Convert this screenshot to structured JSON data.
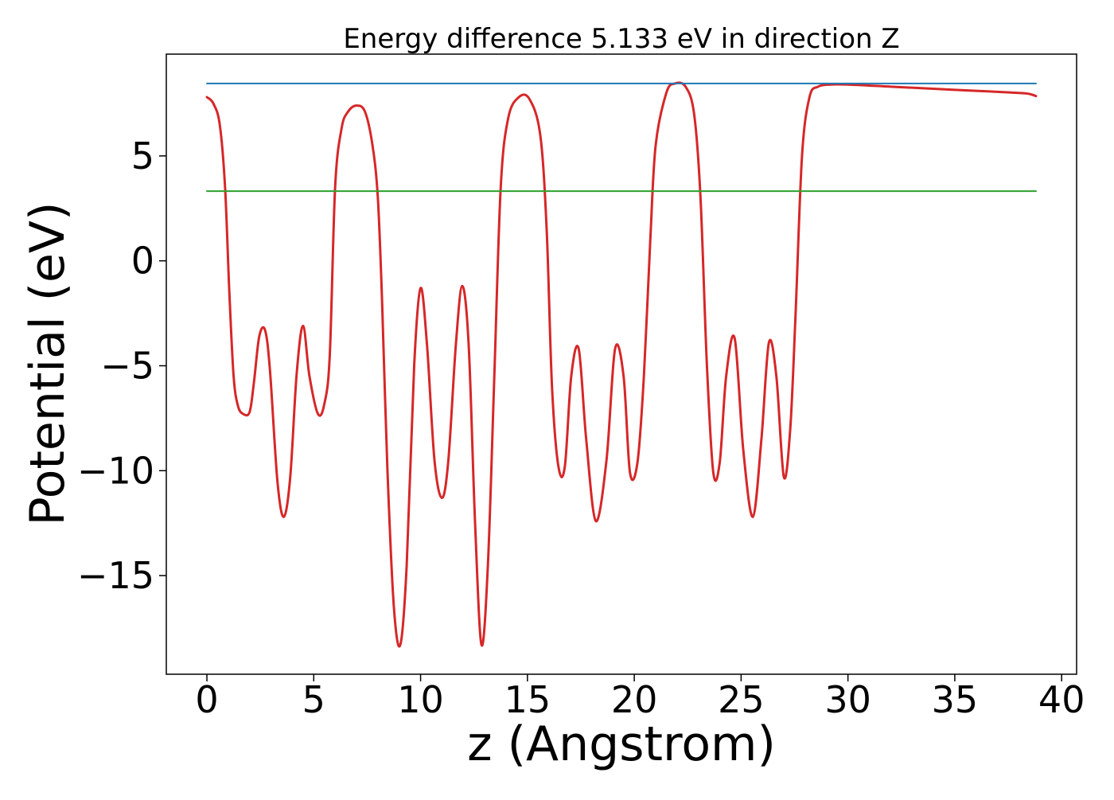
{
  "chart_data": {
    "type": "line",
    "title": "Energy difference 5.133 eV in direction Z",
    "xlabel": "z (Angstrom)",
    "ylabel": "Potential (eV)",
    "xlim": [
      -1.9,
      40.7
    ],
    "ylim": [
      -19.7,
      9.85
    ],
    "x_ticks": [
      0,
      5,
      10,
      15,
      20,
      25,
      30,
      35,
      40
    ],
    "x_tick_labels": [
      "0",
      "5",
      "10",
      "15",
      "20",
      "25",
      "30",
      "35",
      "40"
    ],
    "y_ticks": [
      5,
      0,
      -5,
      -10,
      -15
    ],
    "y_tick_labels": [
      "5",
      "0",
      "−5",
      "−10",
      "−15"
    ],
    "grid": false,
    "series": [
      {
        "color": "#d62728",
        "x": [
          0,
          0.3,
          0.6,
          0.85,
          1.05,
          1.25,
          1.45,
          1.7,
          2.0,
          2.2,
          2.45,
          2.72,
          2.95,
          3.3,
          3.6,
          3.9,
          4.2,
          4.5,
          4.8,
          5.2,
          5.5,
          5.75,
          6.0,
          6.3,
          6.6,
          7.0,
          7.4,
          7.75,
          8.0,
          8.2,
          8.45,
          8.75,
          9.05,
          9.35,
          9.7,
          10.0,
          10.3,
          10.65,
          11.0,
          11.3,
          11.65,
          11.95,
          12.25,
          12.55,
          12.85,
          13.15,
          13.45,
          13.75,
          14.1,
          14.6,
          15.1,
          15.6,
          15.9,
          16.15,
          16.45,
          16.75,
          17.05,
          17.4,
          17.75,
          18.2,
          18.7,
          19.1,
          19.5,
          19.8,
          20.15,
          20.45,
          20.75,
          21.0,
          21.5,
          21.9,
          22.4,
          22.8,
          23.1,
          23.4,
          23.7,
          24.0,
          24.3,
          24.7,
          25.1,
          25.55,
          25.95,
          26.3,
          26.65,
          27.0,
          27.3,
          27.55,
          27.85,
          28.2,
          28.6,
          29.2,
          30.0,
          32.0,
          34.0,
          36.0,
          38.0,
          38.5,
          38.8
        ],
        "y": [
          7.8,
          7.5,
          6.5,
          3.5,
          -1.5,
          -5.5,
          -6.9,
          -7.3,
          -7.2,
          -5.8,
          -3.6,
          -3.3,
          -5.2,
          -10.5,
          -12.2,
          -10.3,
          -5.4,
          -3.1,
          -5.5,
          -7.3,
          -6.8,
          -4.5,
          3.5,
          6.3,
          7.1,
          7.4,
          7.1,
          5.5,
          3.0,
          -2.0,
          -10.0,
          -16.5,
          -18.3,
          -14.5,
          -5.0,
          -1.3,
          -4.0,
          -9.5,
          -11.3,
          -9.5,
          -4.0,
          -1.2,
          -4.0,
          -12.5,
          -18.3,
          -14.5,
          -5.5,
          3.5,
          6.8,
          7.8,
          7.7,
          6.0,
          1.5,
          -6.0,
          -9.8,
          -9.8,
          -5.5,
          -4.2,
          -8.5,
          -12.4,
          -9.5,
          -4.2,
          -5.5,
          -10.1,
          -9.6,
          -5.5,
          1.0,
          5.5,
          8.0,
          8.45,
          8.3,
          7.0,
          3.0,
          -5.0,
          -10.1,
          -9.6,
          -5.5,
          -3.7,
          -9.0,
          -12.2,
          -8.5,
          -3.9,
          -5.5,
          -10.3,
          -8.0,
          -2.5,
          5.0,
          7.8,
          8.3,
          8.4,
          8.4,
          8.3,
          8.2,
          8.1,
          8.0,
          7.95,
          7.85
        ]
      },
      {
        "color": "#1f77b4",
        "x": [
          0,
          38.8
        ],
        "y": [
          8.45,
          8.45
        ]
      },
      {
        "color": "#2ca02c",
        "x": [
          0,
          38.8
        ],
        "y": [
          3.32,
          3.32
        ]
      }
    ]
  }
}
